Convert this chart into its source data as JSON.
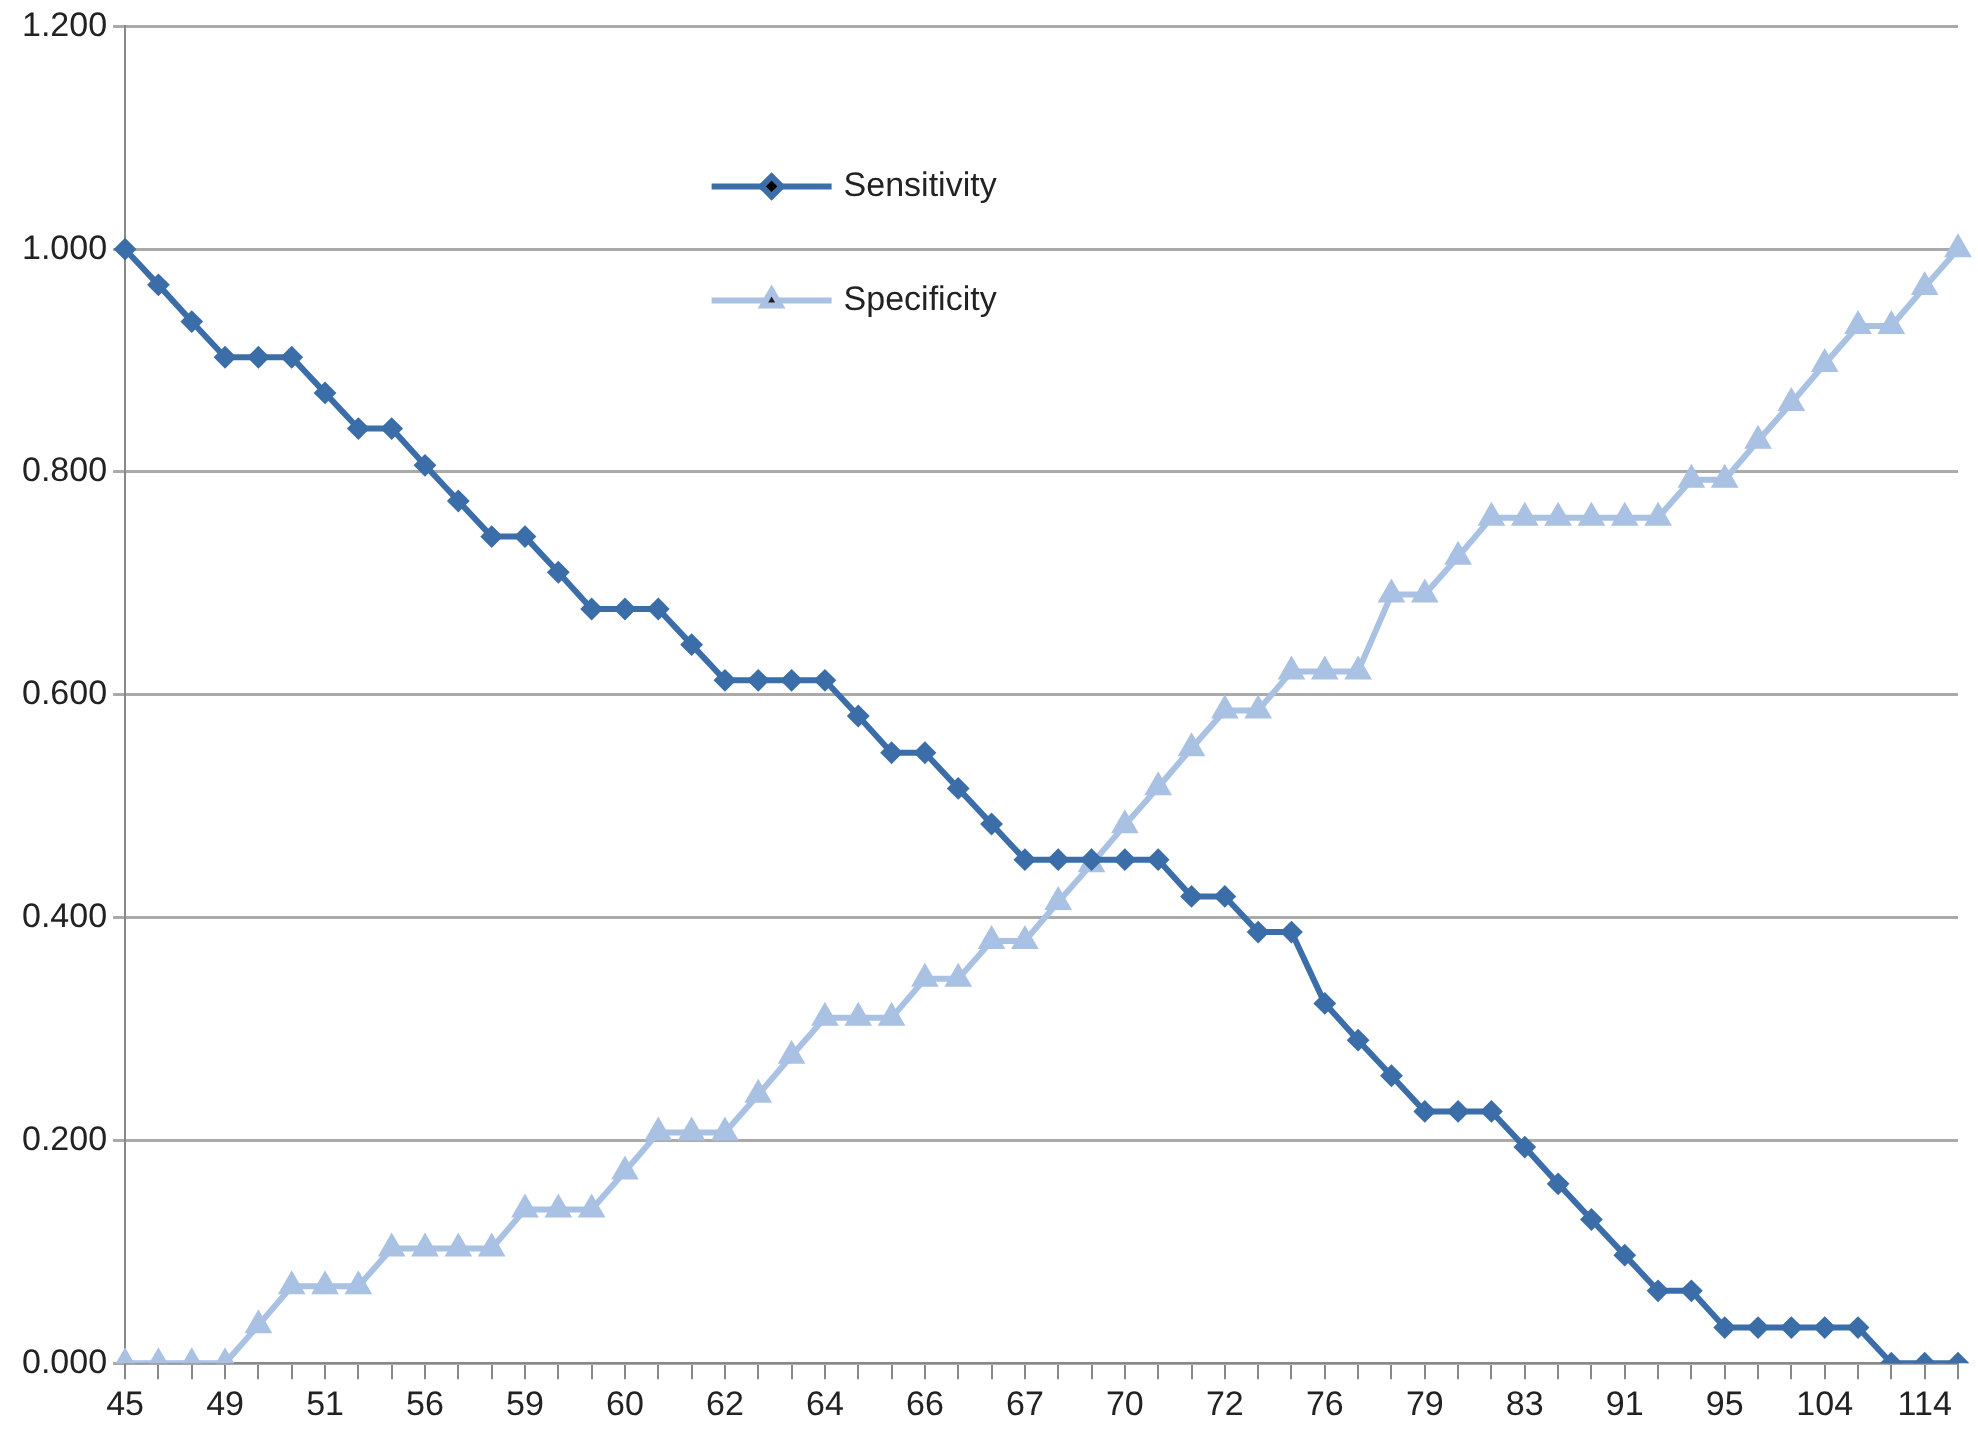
{
  "chart_data": {
    "type": "line",
    "categories": [
      "45",
      null,
      null,
      "49",
      null,
      null,
      "51",
      null,
      null,
      "56",
      null,
      null,
      "59",
      null,
      null,
      "60",
      null,
      null,
      "62",
      null,
      null,
      "64",
      null,
      null,
      "66",
      null,
      null,
      "67",
      null,
      null,
      "70",
      null,
      null,
      "72",
      null,
      null,
      "76",
      null,
      null,
      "79",
      null,
      null,
      "83",
      null,
      null,
      "91",
      null,
      null,
      "95",
      null,
      null,
      "104",
      null,
      null,
      "114",
      null
    ],
    "series": [
      {
        "name": "Sensitivity",
        "color": "#3b6ea8",
        "marker": "diamond",
        "values": [
          1,
          0.968,
          0.935,
          0.903,
          0.903,
          0.903,
          0.871,
          0.839,
          0.839,
          0.806,
          0.774,
          0.742,
          0.742,
          0.71,
          0.677,
          0.677,
          0.677,
          0.645,
          0.613,
          0.613,
          0.613,
          0.613,
          0.581,
          0.548,
          0.548,
          0.516,
          0.484,
          0.452,
          0.452,
          0.452,
          0.452,
          0.452,
          0.419,
          0.419,
          0.387,
          0.387,
          0.323,
          0.29,
          0.258,
          0.226,
          0.226,
          0.226,
          0.194,
          0.161,
          0.129,
          0.097,
          0.065,
          0.065,
          0.032,
          0.032,
          0.032,
          0.032,
          0.032,
          0,
          0,
          0
        ]
      },
      {
        "name": "Specificity",
        "color": "#a9c1e2",
        "marker": "triangle",
        "values": [
          0,
          0,
          0,
          0,
          0.034,
          0.069,
          0.069,
          0.069,
          0.103,
          0.103,
          0.103,
          0.103,
          0.138,
          0.138,
          0.138,
          0.172,
          0.207,
          0.207,
          0.207,
          0.241,
          0.276,
          0.31,
          0.31,
          0.31,
          0.345,
          0.345,
          0.379,
          0.379,
          0.414,
          0.448,
          0.483,
          0.517,
          0.552,
          0.586,
          0.586,
          0.621,
          0.621,
          0.621,
          0.69,
          0.69,
          0.724,
          0.759,
          0.759,
          0.759,
          0.759,
          0.759,
          0.759,
          0.793,
          0.793,
          0.828,
          0.862,
          0.897,
          0.931,
          0.931,
          0.966,
          1
        ]
      }
    ],
    "ylim": [
      0,
      1.2
    ],
    "yticks": [
      {
        "value": 0,
        "label": "0.000"
      },
      {
        "value": 0.2,
        "label": "0.200"
      },
      {
        "value": 0.4,
        "label": "0.400"
      },
      {
        "value": 0.6,
        "label": "0.600"
      },
      {
        "value": 0.8,
        "label": "0.800"
      },
      {
        "value": 1,
        "label": "1.000"
      },
      {
        "value": 1.2,
        "label": "1.200"
      }
    ],
    "grid": "y",
    "legend": "top",
    "line_style": "solid"
  }
}
